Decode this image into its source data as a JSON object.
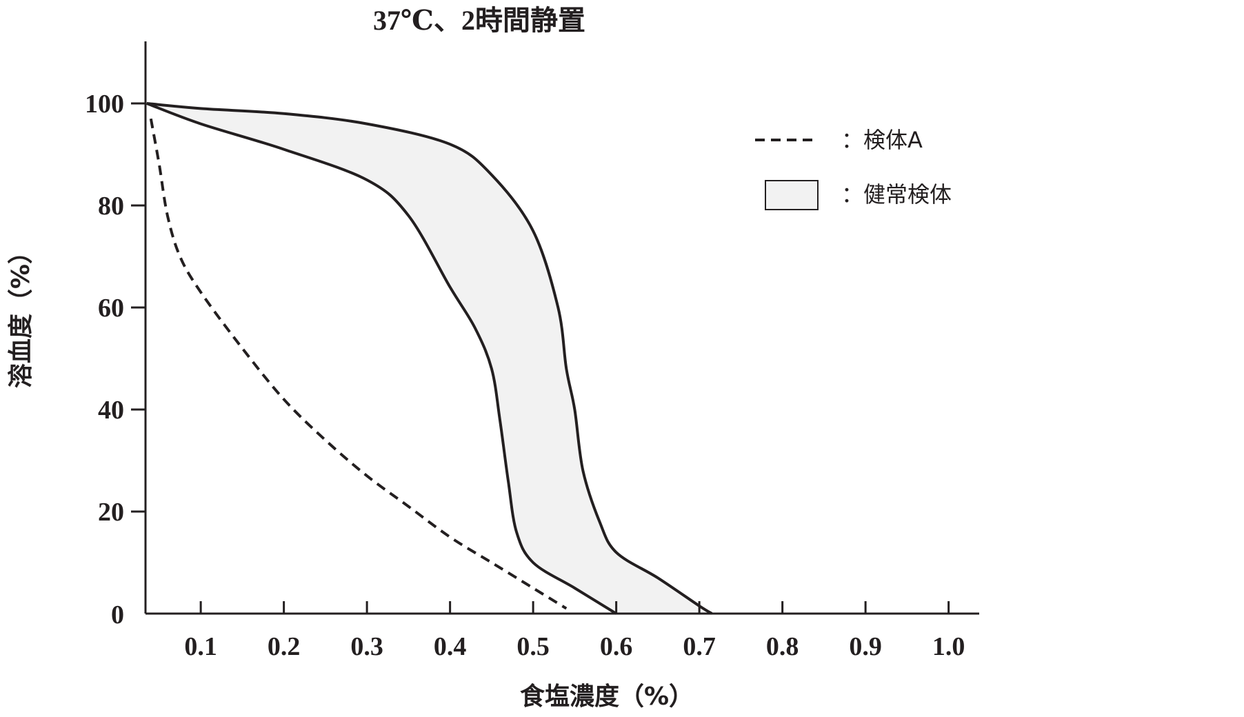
{
  "chart_data": {
    "type": "line",
    "title": "37℃、2時間静置",
    "xlabel": "食塩濃度（%）",
    "ylabel": "溶血度（%）",
    "xlim": [
      0.03,
      1.03
    ],
    "ylim": [
      0,
      110
    ],
    "x_ticks": [
      0.1,
      0.2,
      0.3,
      0.4,
      0.5,
      0.6,
      0.7,
      0.8,
      0.9,
      1.0
    ],
    "x_tick_labels": [
      "0.1",
      "0.2",
      "0.3",
      "0.4",
      "0.5",
      "0.6",
      "0.7",
      "0.8",
      "0.9",
      "1.0"
    ],
    "y_ticks": [
      0,
      20,
      40,
      60,
      80,
      100
    ],
    "y_tick_labels": [
      "0",
      "20",
      "40",
      "60",
      "80",
      "100"
    ],
    "grid": false,
    "legend": {
      "position": "top-right",
      "entries": [
        {
          "label": "：検体A",
          "style": "dashed-line"
        },
        {
          "label": "：健常検体",
          "style": "filled-box"
        }
      ]
    },
    "series": [
      {
        "style": "dashed",
        "points": [
          [
            0.04,
            97
          ],
          [
            0.05,
            88
          ],
          [
            0.06,
            78
          ],
          [
            0.075,
            70
          ],
          [
            0.1,
            63
          ],
          [
            0.15,
            52
          ],
          [
            0.2,
            42
          ],
          [
            0.25,
            34
          ],
          [
            0.3,
            27
          ],
          [
            0.35,
            21
          ],
          [
            0.4,
            15
          ],
          [
            0.45,
            10
          ],
          [
            0.5,
            5
          ],
          [
            0.54,
            1
          ]
        ]
      }
    ],
    "band": {
      "fill": "#f2f2f2",
      "upper": [
        [
          0.035,
          100
        ],
        [
          0.1,
          99
        ],
        [
          0.2,
          98
        ],
        [
          0.3,
          96
        ],
        [
          0.4,
          92
        ],
        [
          0.45,
          86
        ],
        [
          0.5,
          75
        ],
        [
          0.53,
          60
        ],
        [
          0.54,
          48
        ],
        [
          0.55,
          40
        ],
        [
          0.56,
          28
        ],
        [
          0.58,
          18
        ],
        [
          0.6,
          12
        ],
        [
          0.65,
          7
        ],
        [
          0.7,
          1.5
        ],
        [
          0.715,
          0
        ]
      ],
      "lower": [
        [
          0.035,
          100
        ],
        [
          0.1,
          96
        ],
        [
          0.2,
          91
        ],
        [
          0.3,
          85
        ],
        [
          0.35,
          78
        ],
        [
          0.4,
          64
        ],
        [
          0.43,
          56
        ],
        [
          0.45,
          48
        ],
        [
          0.46,
          38
        ],
        [
          0.47,
          26
        ],
        [
          0.48,
          16
        ],
        [
          0.5,
          10
        ],
        [
          0.55,
          5
        ],
        [
          0.6,
          0
        ]
      ]
    }
  }
}
